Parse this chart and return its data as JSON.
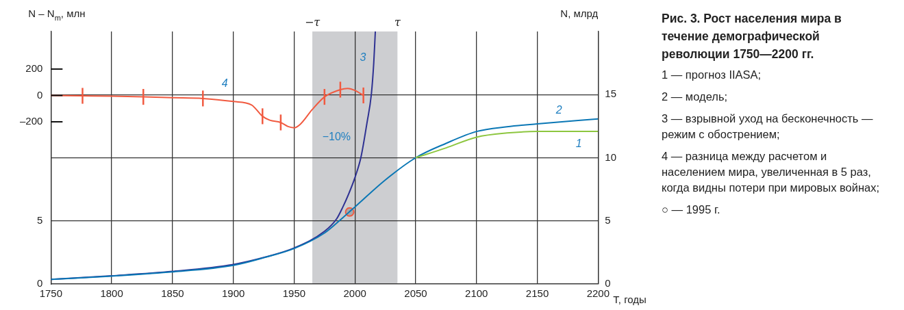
{
  "chart_data": {
    "type": "line",
    "title": "Рис. 3. Рост населения мира в течение демографической революции 1750—2200 гг.",
    "xlabel": "T, годы",
    "y2label": "N, млрд",
    "y3label": "N – N$_{m}$, млн",
    "xlim": [
      1750,
      2200
    ],
    "xticks": [
      1750,
      1800,
      1850,
      1900,
      1950,
      2000,
      2050,
      2100,
      2150,
      2200
    ],
    "ylim": [
      0,
      20
    ],
    "yticks": [
      0,
      5
    ],
    "y2lim": [
      0,
      20
    ],
    "y2ticks": [
      0,
      5,
      10,
      15
    ],
    "y3lim": [
      -1430,
      485
    ],
    "y3ticks": [
      200,
      0,
      {
        "value": -200,
        "label": "–200"
      }
    ],
    "grid": true,
    "marker": "none",
    "legend": false,
    "bands": [
      {
        "axis": "x",
        "from": 1965,
        "to": 2035,
        "color": "#cdced1"
      }
    ],
    "series": [
      {
        "name": "1",
        "color": "#8dc63f",
        "x": [
          2050,
          2075,
          2100,
          2125,
          2150,
          2200
        ],
        "values": [
          10,
          10.78,
          11.63,
          11.96,
          12.08,
          12.08
        ]
      },
      {
        "name": "2",
        "color": "#0a77b5",
        "x": [
          1750,
          1800,
          1850,
          1900,
          1925,
          1950,
          1975,
          1990,
          2000,
          2025,
          2050,
          2075,
          2100,
          2125,
          2150,
          2200
        ],
        "values": [
          0.36,
          0.63,
          0.96,
          1.48,
          2.08,
          2.81,
          4.04,
          5.25,
          6.1,
          8.24,
          10,
          11.14,
          12.08,
          12.45,
          12.68,
          13.08
        ]
      },
      {
        "name": "3",
        "color": "#2e3192",
        "x": [
          1750,
          1800,
          1850,
          1900,
          1925,
          1950,
          1975,
          1985,
          1990,
          1995,
          2000,
          2005,
          2010,
          2013.5,
          2015.5,
          2016.8
        ],
        "values": [
          0.36,
          0.65,
          1.0,
          1.55,
          2.1,
          2.85,
          4.17,
          5.16,
          6.08,
          7.16,
          8.42,
          10.05,
          12.8,
          15,
          17.5,
          20
        ]
      },
      {
        "name": "4",
        "axis": "y3",
        "color": "#f15a40",
        "x": [
          1750,
          1776,
          1800,
          1826,
          1850,
          1875,
          1900,
          1915,
          1924,
          1930,
          1939,
          1945,
          1950,
          1955,
          1965,
          1975,
          1988,
          1994,
          2000,
          2007
        ],
        "values": [
          0,
          -3,
          -6,
          -11,
          -17,
          -23,
          -46,
          -72,
          -158,
          -188,
          -205,
          -236,
          -245,
          -219,
          -106,
          -11,
          44,
          53,
          38,
          0
        ],
        "errors": [
          null,
          60,
          null,
          60,
          null,
          60,
          null,
          null,
          60,
          null,
          60,
          null,
          null,
          null,
          null,
          60,
          60,
          null,
          null,
          60
        ]
      },
      {
        "type": "scatter",
        "marker": "circle",
        "color": "#f15a40",
        "x": [
          1995.7
        ],
        "values": [
          5.7
        ]
      }
    ],
    "annotations": [
      "−10%",
      {
        "text": "−τ",
        "x": 1965,
        "y": 20
      },
      {
        "text": "τ",
        "x": 2035,
        "y": 20
      },
      "1 — прогноз IIASA;",
      "2 — модель;",
      "3 — взрывной уход на бесконечность — режим с обострением;",
      "4 — разница между расчетом и населением мира, увеличенная в 5 раз, когда видны потери при мировых войнах;",
      "○ — 1995 г."
    ]
  }
}
